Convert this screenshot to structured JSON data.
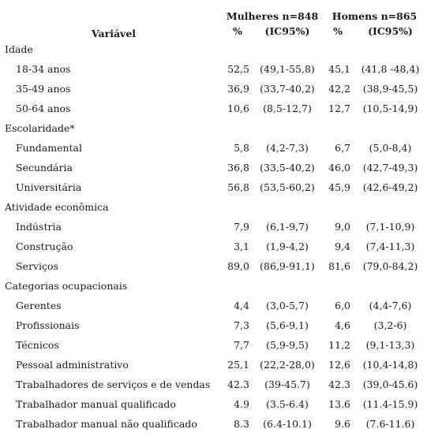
{
  "header": {
    "variable_label": "Variável",
    "women_label": "Mulheres n=848",
    "men_label": "Homens n=865",
    "pct_label": "%",
    "ci_label": "(IC95%)"
  },
  "rows": [
    {
      "type": "category",
      "label": "Idade"
    },
    {
      "type": "item",
      "label": "18-34 anos",
      "w_pct": "52,5",
      "w_ci": "(49,1-55,8)",
      "m_pct": "45,1",
      "m_ci": "(41,8 -48,4)"
    },
    {
      "type": "item",
      "label": "35-49 anos",
      "w_pct": "36,9",
      "w_ci": "(33,7-40,2)",
      "m_pct": "42,2",
      "m_ci": "(38,9-45,5)"
    },
    {
      "type": "item",
      "label": "50-64 anos",
      "w_pct": "10,6",
      "w_ci": "(8,5-12,7)",
      "m_pct": "12,7",
      "m_ci": "(10,5-14,9)"
    },
    {
      "type": "category",
      "label": "Escolaridade*"
    },
    {
      "type": "item",
      "label": "Fundamental",
      "w_pct": "5,8",
      "w_ci": "(4,2-7,3)",
      "m_pct": "6,7",
      "m_ci": "(5,0-8,4)"
    },
    {
      "type": "item",
      "label": "Secundária",
      "w_pct": "36,8",
      "w_ci": "(33,5-40,2)",
      "m_pct": "46,0",
      "m_ci": "(42,7-49,3)"
    },
    {
      "type": "item",
      "label": "Universitária",
      "w_pct": "56,8",
      "w_ci": "(53,5-60,2)",
      "m_pct": "45,9",
      "m_ci": "(42,6-49,2)"
    },
    {
      "type": "category",
      "label": "Atividade econômica"
    },
    {
      "type": "item",
      "label": "Indústria",
      "w_pct": "7,9",
      "w_ci": "(6,1-9,7)",
      "m_pct": "9,0",
      "m_ci": "(7,1-10,9)"
    },
    {
      "type": "item",
      "label": "Construção",
      "w_pct": "3,1",
      "w_ci": "(1,9-4,2)",
      "m_pct": "9,4",
      "m_ci": "(7,4-11,3)"
    },
    {
      "type": "item",
      "label": "Serviços",
      "w_pct": "89,0",
      "w_ci": "(86,9-91,1)",
      "m_pct": "81,6",
      "m_ci": "(79,0-84,2)"
    },
    {
      "type": "category",
      "label": "Categorias ocupacionais"
    },
    {
      "type": "item",
      "label": "Gerentes",
      "w_pct": "4,4",
      "w_ci": "(3,0-5,7)",
      "m_pct": "6,0",
      "m_ci": "(4,4-7,6)"
    },
    {
      "type": "item",
      "label": "Profissionais",
      "w_pct": "7,3",
      "w_ci": "(5,6-9,1)",
      "m_pct": "4,6",
      "m_ci": "(3,2-6)"
    },
    {
      "type": "item",
      "label": "Técnicos",
      "w_pct": "7,7",
      "w_ci": "(5,9-9,5)",
      "m_pct": "11,2",
      "m_ci": "(9,1-13,3)"
    },
    {
      "type": "item",
      "label": "Pessoal administrativo",
      "w_pct": "25,1",
      "w_ci": "(22,2-28,0)",
      "m_pct": "12,6",
      "m_ci": "(10,4-14,8)"
    },
    {
      "type": "item",
      "label": "Trabalhadores de serviços e de vendas",
      "w_pct": "42.3",
      "w_ci": "(39-45.7)",
      "m_pct": "42.3",
      "m_ci": "(39,0-45.6)"
    },
    {
      "type": "item",
      "label": "Trabalhador manual qualificado",
      "w_pct": "4.9",
      "w_ci": "(3.5-6.4)",
      "m_pct": "13.6",
      "m_ci": "(11.4-15.9)"
    },
    {
      "type": "item",
      "label": "Trabalhador manual não qualificado",
      "w_pct": "8.3",
      "w_ci": "(6.4-10.1)",
      "m_pct": "9.6",
      "m_ci": "(7.6-11.6)"
    }
  ]
}
